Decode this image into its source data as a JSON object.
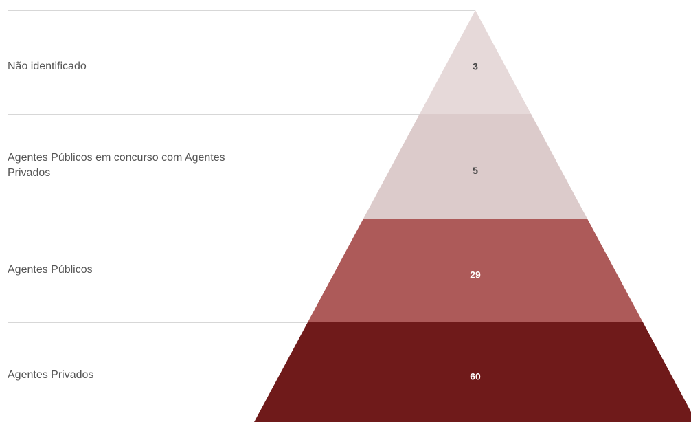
{
  "chart_data": {
    "type": "pyramid",
    "title": "",
    "levels": [
      {
        "label": "Não identificado",
        "value": 3,
        "color": "#e6d9d9",
        "text_color": "#444444"
      },
      {
        "label": "Agentes Públicos em concurso com Agentes Privados",
        "value": 5,
        "color": "#dccbcb",
        "text_color": "#444444"
      },
      {
        "label": "Agentes Públicos",
        "value": 29,
        "color": "#ad5a59",
        "text_color": "#ffffff"
      },
      {
        "label": "Agentes Privados",
        "value": 60,
        "color": "#6f1a1a",
        "text_color": "#ffffff"
      }
    ]
  }
}
